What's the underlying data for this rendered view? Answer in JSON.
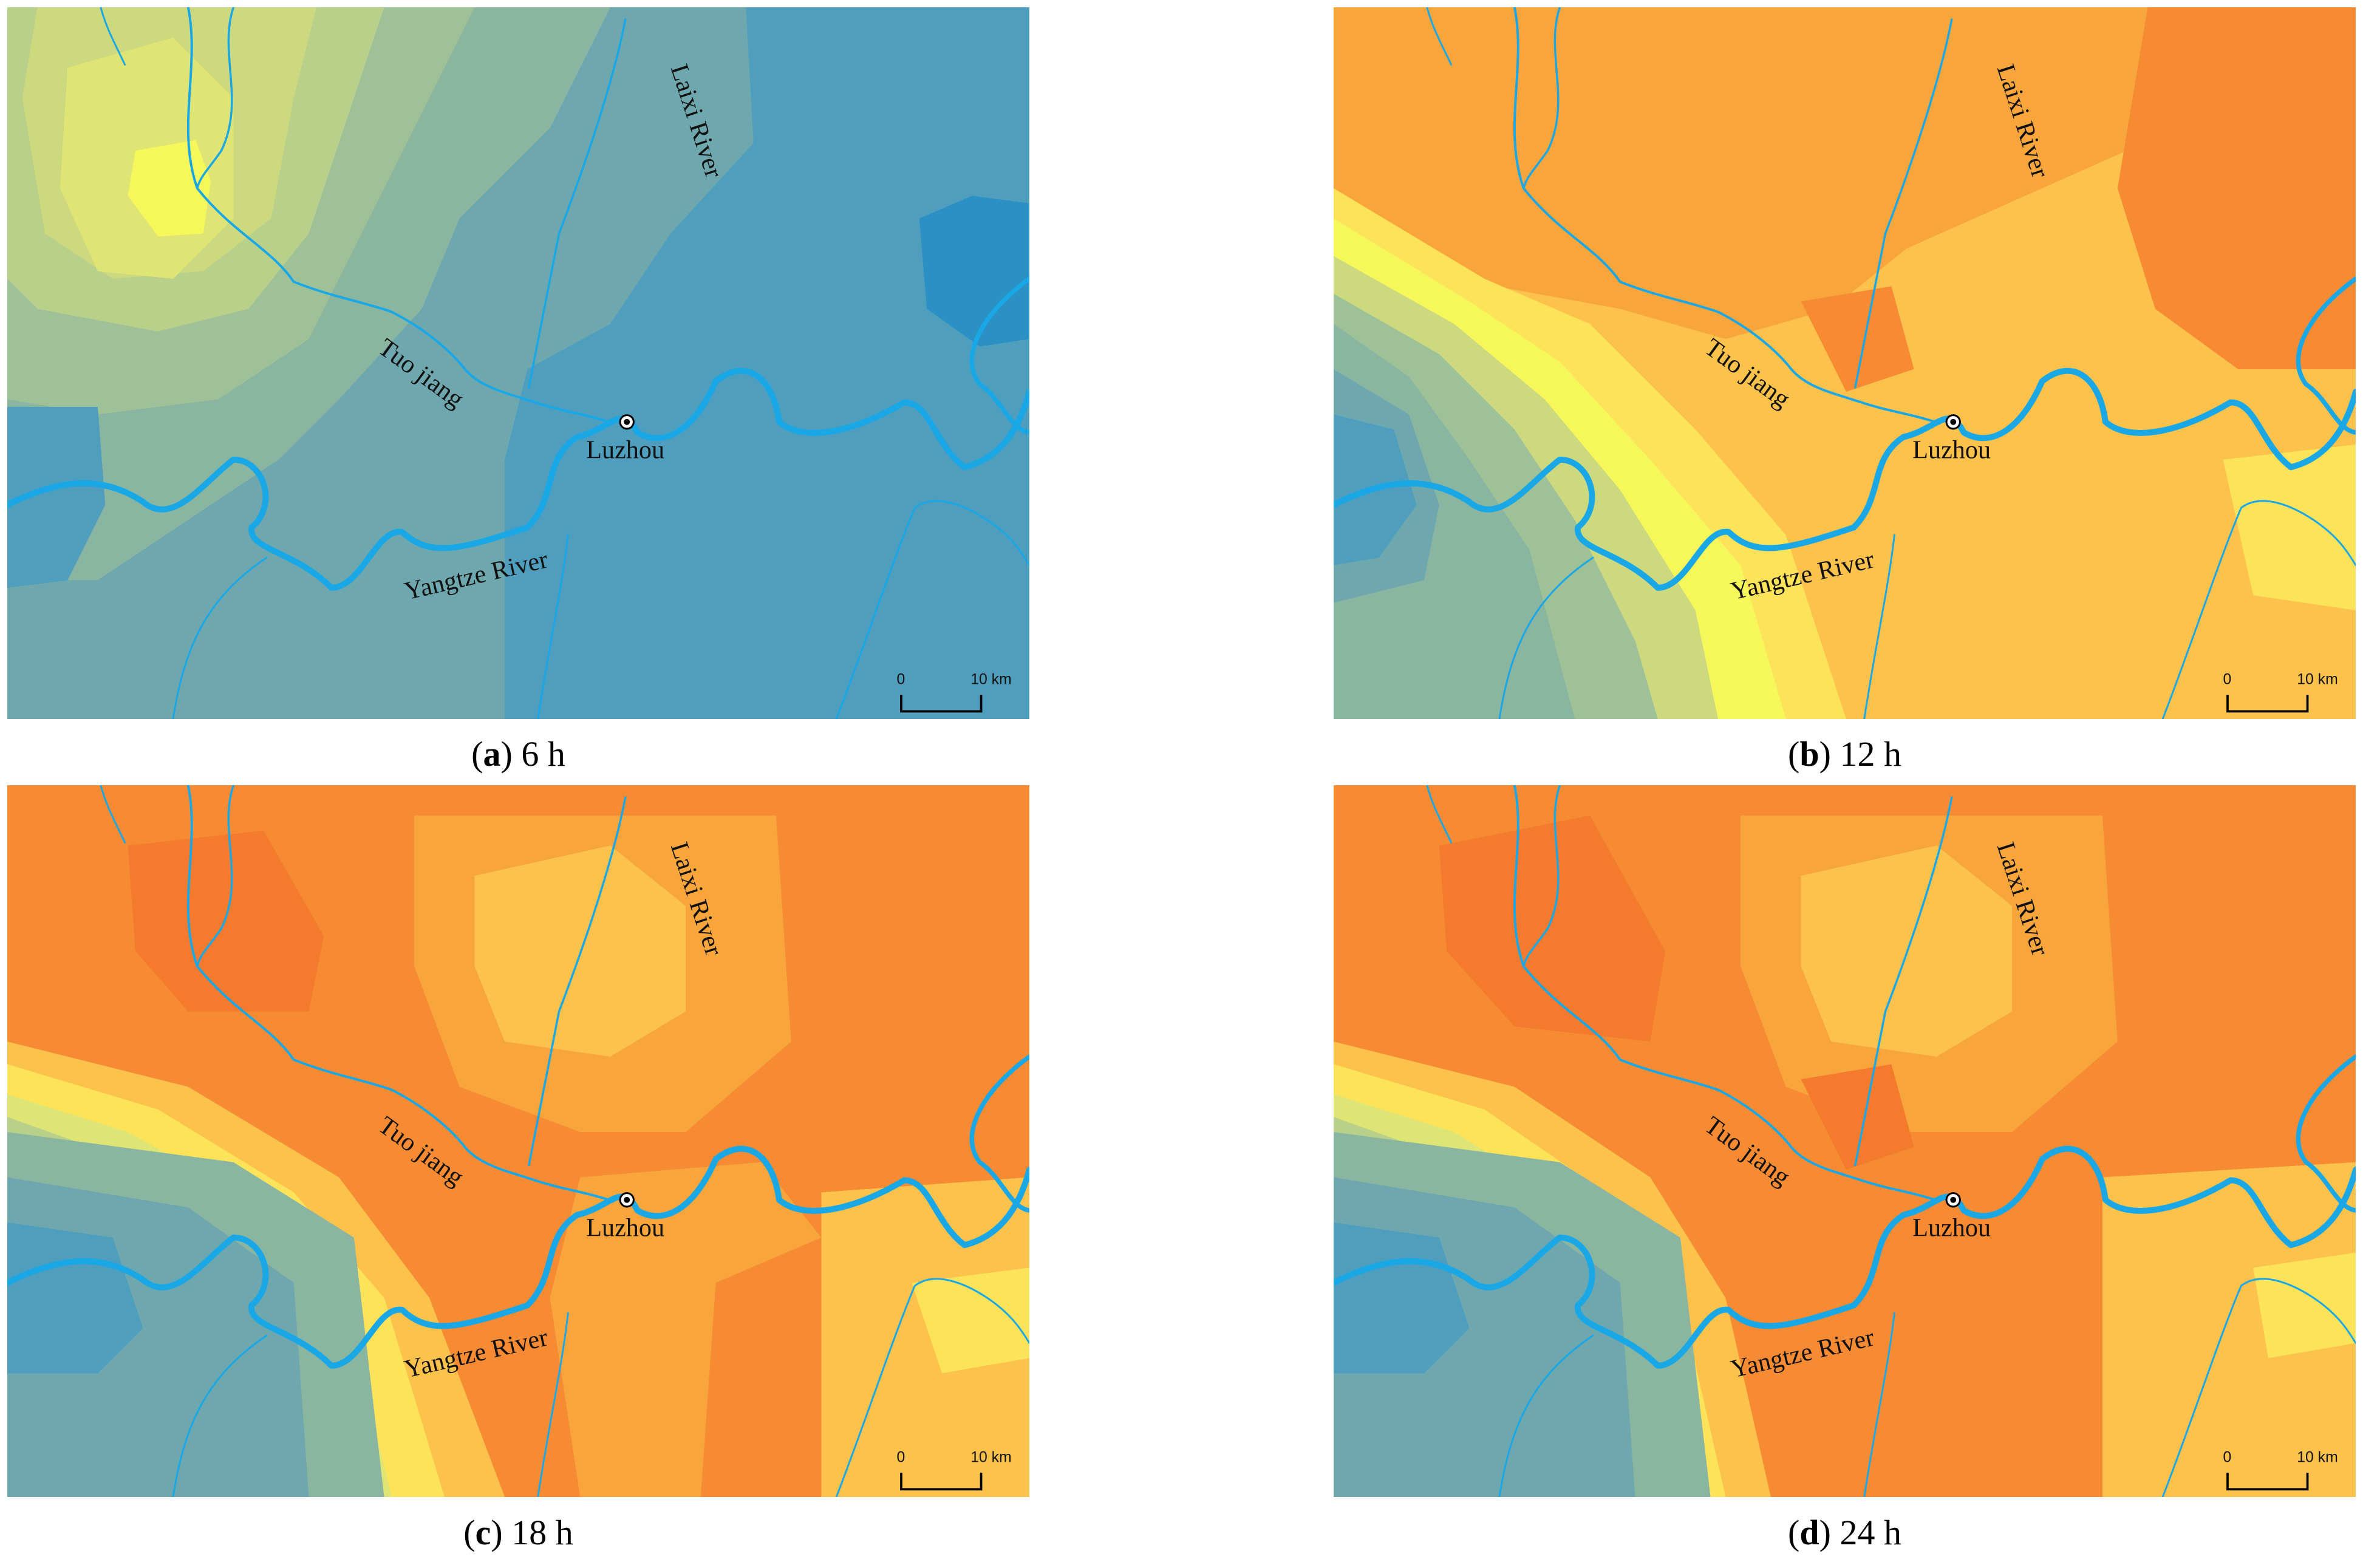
{
  "figure": {
    "panels": [
      {
        "letter": "a",
        "time": "6 h"
      },
      {
        "letter": "b",
        "time": "12 h"
      },
      {
        "letter": "c",
        "time": "18 h"
      },
      {
        "letter": "d",
        "time": "24 h"
      }
    ],
    "labels": {
      "city": "Luzhou",
      "tuo": "Tuo jiang",
      "laixi": "Laixi River",
      "yangtze": "Yangtze River"
    },
    "scale_bar": {
      "start": "0",
      "end": "10 km"
    },
    "colors": {
      "river": "#1aa7e6",
      "palette_low_to_high": [
        "#2b91c4",
        "#4f9ebd",
        "#6ea8ae",
        "#8ab5a0",
        "#9fc197",
        "#b9d08b",
        "#cdd97f",
        "#dfe574",
        "#f5f75a",
        "#fde35a",
        "#fcc24b",
        "#f8a53c",
        "#f68b33",
        "#f47a2d"
      ]
    }
  }
}
